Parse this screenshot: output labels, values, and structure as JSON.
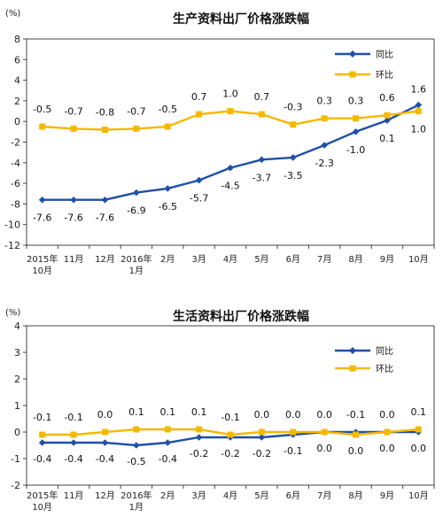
{
  "colors": {
    "yoy": "#1f4fa8",
    "mom": "#f5b800",
    "axis": "#444444"
  },
  "chart_data": [
    {
      "type": "line",
      "title": "生产资料出厂价格涨跌幅",
      "unit": "(%)",
      "categories": [
        [
          "2015年",
          "10月"
        ],
        [
          "11月"
        ],
        [
          "12月"
        ],
        [
          "2016年",
          "1月"
        ],
        [
          "2月"
        ],
        [
          "3月"
        ],
        [
          "4月"
        ],
        [
          "5月"
        ],
        [
          "6月"
        ],
        [
          "7月"
        ],
        [
          "8月"
        ],
        [
          "9月"
        ],
        [
          "10月"
        ]
      ],
      "ylim": [
        -12,
        8
      ],
      "yticks": [
        8,
        6,
        4,
        2,
        0,
        -2,
        -4,
        -6,
        -8,
        -10,
        -12
      ],
      "legend_position": "top-right",
      "series": [
        {
          "name": "同比",
          "color": "#1f4fa8",
          "marker": "diamond",
          "label_pos": "below",
          "values": [
            -7.6,
            -7.6,
            -7.6,
            -6.9,
            -6.5,
            -5.7,
            -4.5,
            -3.7,
            -3.5,
            -2.3,
            -1.0,
            0.1,
            1.6
          ]
        },
        {
          "name": "环比",
          "color": "#f5b800",
          "marker": "square",
          "label_pos": "above",
          "values": [
            -0.5,
            -0.7,
            -0.8,
            -0.7,
            -0.5,
            0.7,
            1.0,
            0.7,
            -0.3,
            0.3,
            0.3,
            0.6,
            1.0
          ]
        }
      ]
    },
    {
      "type": "line",
      "title": "生活资料出厂价格涨跌幅",
      "unit": "(%)",
      "categories": [
        [
          "2015年",
          "10月"
        ],
        [
          "11月"
        ],
        [
          "12月"
        ],
        [
          "2016年",
          "1月"
        ],
        [
          "2月"
        ],
        [
          "3月"
        ],
        [
          "4月"
        ],
        [
          "5月"
        ],
        [
          "6月"
        ],
        [
          "7月"
        ],
        [
          "8月"
        ],
        [
          "9月"
        ],
        [
          "10月"
        ]
      ],
      "ylim": [
        -2,
        4
      ],
      "yticks": [
        4,
        3,
        2,
        1,
        0,
        -1,
        -2
      ],
      "legend_position": "top-right",
      "series": [
        {
          "name": "同比",
          "color": "#1f4fa8",
          "marker": "diamond",
          "label_pos": "below",
          "values": [
            -0.4,
            -0.4,
            -0.4,
            -0.5,
            -0.4,
            -0.2,
            -0.2,
            -0.2,
            -0.1,
            0.0,
            0.0,
            0.0,
            0.0
          ]
        },
        {
          "name": "环比",
          "color": "#f5b800",
          "marker": "square",
          "label_pos": "above",
          "values": [
            -0.1,
            -0.1,
            0.0,
            0.1,
            0.1,
            0.1,
            -0.1,
            0.0,
            0.0,
            0.0,
            -0.1,
            0.0,
            0.1
          ]
        }
      ]
    }
  ]
}
